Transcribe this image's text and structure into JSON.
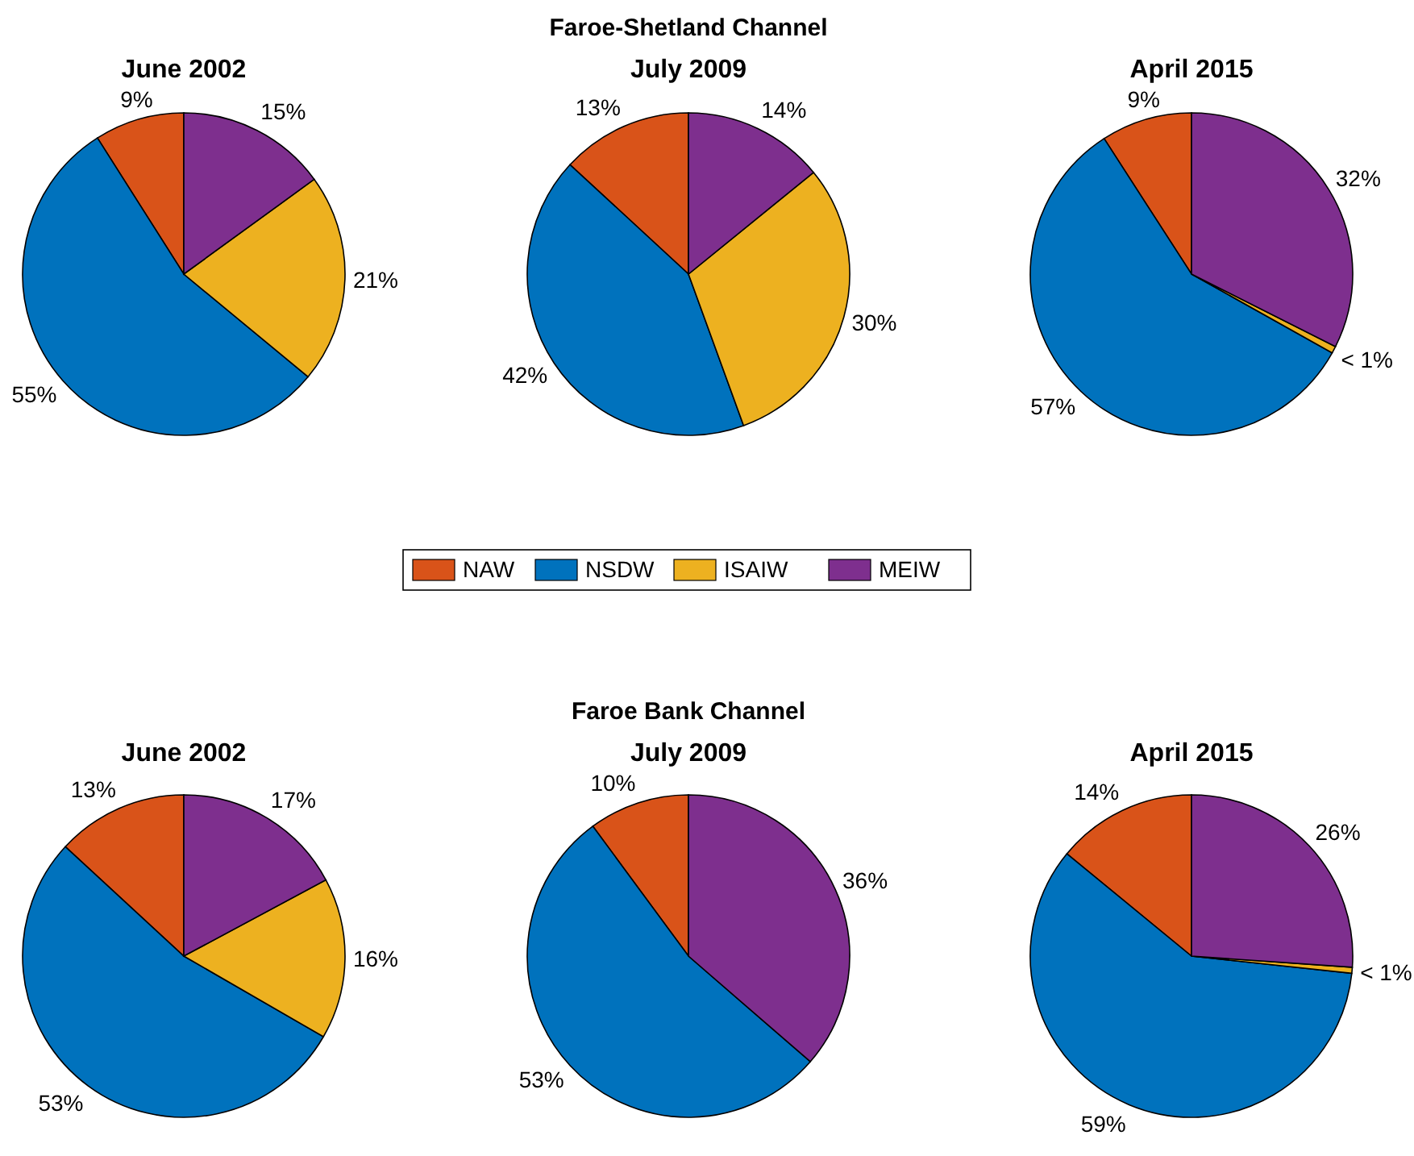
{
  "chart_data": [
    {
      "type": "pie",
      "title": "June 2002",
      "legend": "bottom",
      "categories": [
        "NAW",
        "NSDW",
        "ISAIW",
        "MEIW"
      ],
      "values": [
        9,
        55,
        21,
        15
      ],
      "colors": [
        "#d95319",
        "#0072bd",
        "#edb120",
        "#7e2f8e"
      ],
      "value_labels": [
        "9%",
        "55%",
        "21%",
        "15%"
      ]
    },
    {
      "type": "pie",
      "title": "July 2009",
      "annotations": [
        "Faroe-Shetland Channel"
      ],
      "categories": [
        null,
        null,
        null,
        null
      ],
      "values": [
        13,
        42,
        30,
        14
      ],
      "colors": [
        "#d95319",
        "#0072bd",
        "#edb120",
        "#7e2f8e"
      ],
      "value_labels": [
        "13%",
        "42%",
        "30%",
        "14%"
      ]
    },
    {
      "type": "pie",
      "title": "April 2015",
      "categories": [
        null,
        null,
        null,
        null
      ],
      "values": [
        9,
        57,
        0.7,
        32
      ],
      "colors": [
        "#d95319",
        "#0072bd",
        "#edb120",
        "#7e2f8e"
      ],
      "value_labels": [
        "9%",
        "57%",
        "< 1%",
        "32%"
      ]
    },
    {
      "type": "pie",
      "title": "June 2002",
      "categories": [
        null,
        null,
        null,
        null
      ],
      "values": [
        13,
        53,
        16,
        17
      ],
      "colors": [
        "#d95319",
        "#0072bd",
        "#edb120",
        "#7e2f8e"
      ],
      "value_labels": [
        "13%",
        "53%",
        "16%",
        "17%"
      ]
    },
    {
      "type": "pie",
      "title": "July 2009",
      "annotations": [
        "Faroe Bank Channel"
      ],
      "categories": [
        null,
        null,
        null
      ],
      "values": [
        10,
        53,
        36
      ],
      "colors": [
        "#d95319",
        "#0072bd",
        "#7e2f8e"
      ],
      "value_labels": [
        "10%",
        "53%",
        "36%"
      ]
    },
    {
      "type": "pie",
      "title": "April 2015",
      "categories": [
        null,
        null,
        null,
        null
      ],
      "values": [
        14,
        59,
        0.6,
        26
      ],
      "colors": [
        "#d95319",
        "#0072bd",
        "#edb120",
        "#7e2f8e"
      ],
      "value_labels": [
        "14%",
        "59%",
        "< 1%",
        "26%"
      ]
    }
  ]
}
